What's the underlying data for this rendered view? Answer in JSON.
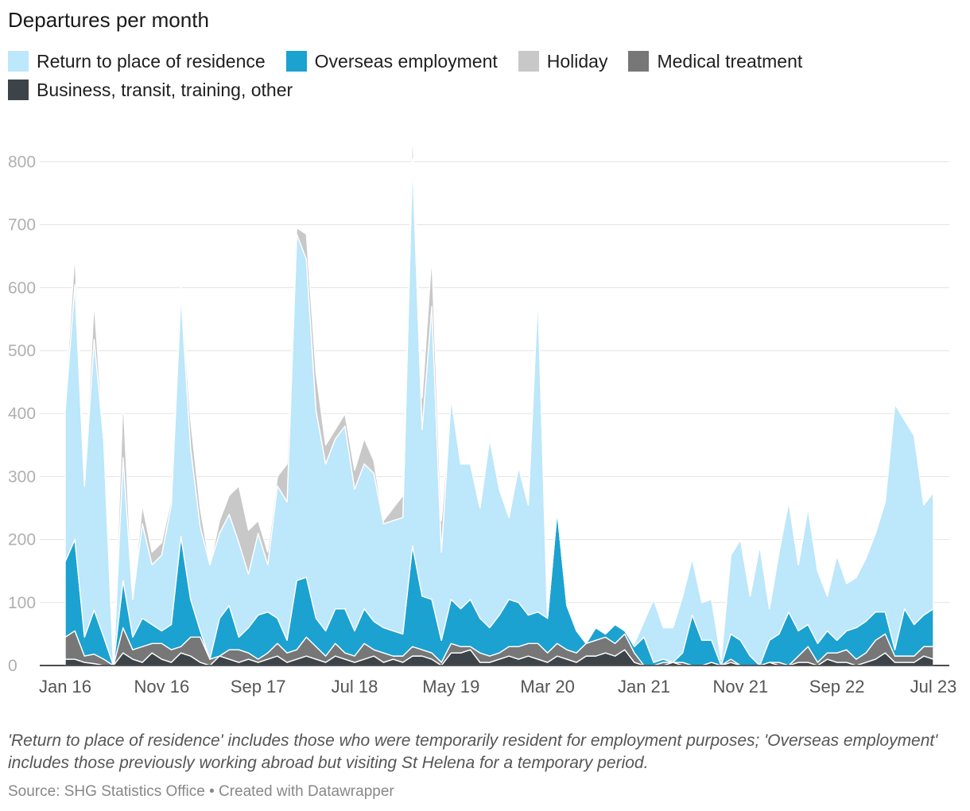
{
  "chart_data": {
    "type": "area",
    "stacked": true,
    "title": "Departures per month",
    "xlabel": "",
    "ylabel": "",
    "ylim": [
      0,
      880
    ],
    "grid": true,
    "legend_position": "top",
    "y_ticks": [
      0,
      100,
      200,
      300,
      400,
      500,
      600,
      700,
      800
    ],
    "x_tick_labels": [
      "Jan 16",
      "Nov 16",
      "Sep 17",
      "Jul 18",
      "May 19",
      "Mar 20",
      "Jan 21",
      "Nov 21",
      "Sep 22",
      "Jul 23"
    ],
    "x_tick_interval_months": 10,
    "x_start": "Jan 16",
    "x_end": "Jul 23",
    "months_count": 91,
    "series": [
      {
        "name": "Business, transit, training, other",
        "color": "#3d4449",
        "values": [
          10,
          10,
          5,
          3,
          0,
          0,
          20,
          10,
          5,
          20,
          10,
          5,
          20,
          15,
          5,
          0,
          15,
          10,
          5,
          10,
          5,
          10,
          15,
          5,
          10,
          15,
          10,
          5,
          15,
          10,
          5,
          10,
          15,
          5,
          10,
          5,
          15,
          15,
          10,
          0,
          20,
          20,
          25,
          5,
          5,
          10,
          15,
          10,
          15,
          10,
          5,
          15,
          10,
          5,
          15,
          15,
          20,
          15,
          25,
          5,
          0,
          0,
          0,
          5,
          0,
          0,
          0,
          5,
          0,
          5,
          0,
          0,
          0,
          5,
          0,
          0,
          5,
          5,
          0,
          10,
          5,
          5,
          0,
          5,
          10,
          20,
          5,
          5,
          5,
          15,
          10
        ]
      },
      {
        "name": "Medical treatment",
        "color": "#777777",
        "values": [
          35,
          45,
          10,
          15,
          10,
          0,
          40,
          15,
          25,
          15,
          25,
          20,
          10,
          30,
          40,
          10,
          0,
          15,
          20,
          10,
          5,
          10,
          20,
          15,
          15,
          30,
          20,
          10,
          20,
          10,
          10,
          25,
          10,
          15,
          5,
          10,
          15,
          10,
          10,
          5,
          15,
          10,
          5,
          15,
          10,
          10,
          15,
          20,
          20,
          25,
          15,
          20,
          15,
          15,
          20,
          25,
          25,
          20,
          25,
          15,
          0,
          0,
          5,
          0,
          5,
          0,
          0,
          0,
          0,
          5,
          0,
          0,
          0,
          0,
          5,
          0,
          10,
          25,
          5,
          10,
          15,
          20,
          10,
          15,
          30,
          30,
          10,
          10,
          10,
          15,
          20
        ]
      },
      {
        "name": "Overseas employment",
        "color": "#1ba2d0",
        "values": [
          120,
          145,
          30,
          70,
          35,
          0,
          75,
          20,
          45,
          30,
          20,
          40,
          175,
          60,
          10,
          0,
          60,
          70,
          20,
          40,
          70,
          65,
          40,
          20,
          110,
          95,
          45,
          40,
          55,
          70,
          40,
          55,
          45,
          40,
          40,
          35,
          160,
          85,
          85,
          35,
          70,
          60,
          75,
          55,
          45,
          60,
          75,
          70,
          45,
          50,
          55,
          210,
          70,
          35,
          0,
          20,
          5,
          30,
          5,
          10,
          45,
          5,
          5,
          0,
          15,
          80,
          40,
          35,
          0,
          40,
          40,
          15,
          0,
          35,
          45,
          85,
          40,
          35,
          30,
          35,
          20,
          30,
          50,
          50,
          45,
          35,
          10,
          75,
          50,
          50,
          60
        ]
      },
      {
        "name": "Return to place of residence",
        "color": "#bde7fa",
        "values": [
          240,
          405,
          240,
          430,
          310,
          0,
          195,
          60,
          150,
          95,
          120,
          190,
          385,
          240,
          165,
          150,
          135,
          145,
          150,
          85,
          130,
          75,
          210,
          220,
          550,
          505,
          330,
          265,
          270,
          290,
          225,
          230,
          235,
          165,
          175,
          185,
          615,
          265,
          465,
          140,
          320,
          230,
          215,
          175,
          300,
          200,
          130,
          215,
          175,
          505,
          0,
          0,
          0,
          0,
          0,
          0,
          0,
          0,
          0,
          5,
          25,
          100,
          50,
          55,
          90,
          90,
          60,
          65,
          10,
          125,
          160,
          95,
          190,
          50,
          130,
          175,
          105,
          185,
          115,
          55,
          135,
          75,
          80,
          100,
          125,
          175,
          390,
          300,
          300,
          175,
          185
        ]
      },
      {
        "name": "Holiday",
        "color": "#c8c8c8",
        "values": [
          15,
          50,
          5,
          60,
          0,
          0,
          95,
          0,
          30,
          20,
          20,
          10,
          15,
          45,
          30,
          0,
          20,
          30,
          90,
          70,
          20,
          20,
          15,
          60,
          10,
          40,
          60,
          30,
          15,
          20,
          30,
          40,
          20,
          5,
          20,
          35,
          50,
          50,
          80,
          50,
          0,
          0,
          0,
          0,
          0,
          0,
          0,
          0,
          0,
          0,
          0,
          0,
          0,
          0,
          0,
          0,
          0,
          0,
          0,
          0,
          0,
          0,
          0,
          0,
          0,
          0,
          0,
          0,
          0,
          0,
          0,
          0,
          0,
          0,
          0,
          0,
          0,
          0,
          0,
          0,
          0,
          0,
          0,
          0,
          0,
          0,
          0,
          0,
          0,
          0,
          0
        ]
      }
    ]
  },
  "labels": {
    "title": "Departures per month",
    "legend": [
      {
        "label": "Return to place of residence",
        "color": "#bde7fa"
      },
      {
        "label": "Overseas employment",
        "color": "#1ba2d0"
      },
      {
        "label": "Holiday",
        "color": "#c8c8c8"
      },
      {
        "label": "Medical treatment",
        "color": "#777777"
      },
      {
        "label": "Business, transit, training, other",
        "color": "#3d4449"
      }
    ],
    "note": "'Return to place of residence' includes those who were temporarily resident for employment purposes; 'Overseas employment' includes those previously working abroad but visiting St Helena for a temporary period.",
    "source": "Source: SHG Statistics Office • Created with Datawrapper"
  }
}
